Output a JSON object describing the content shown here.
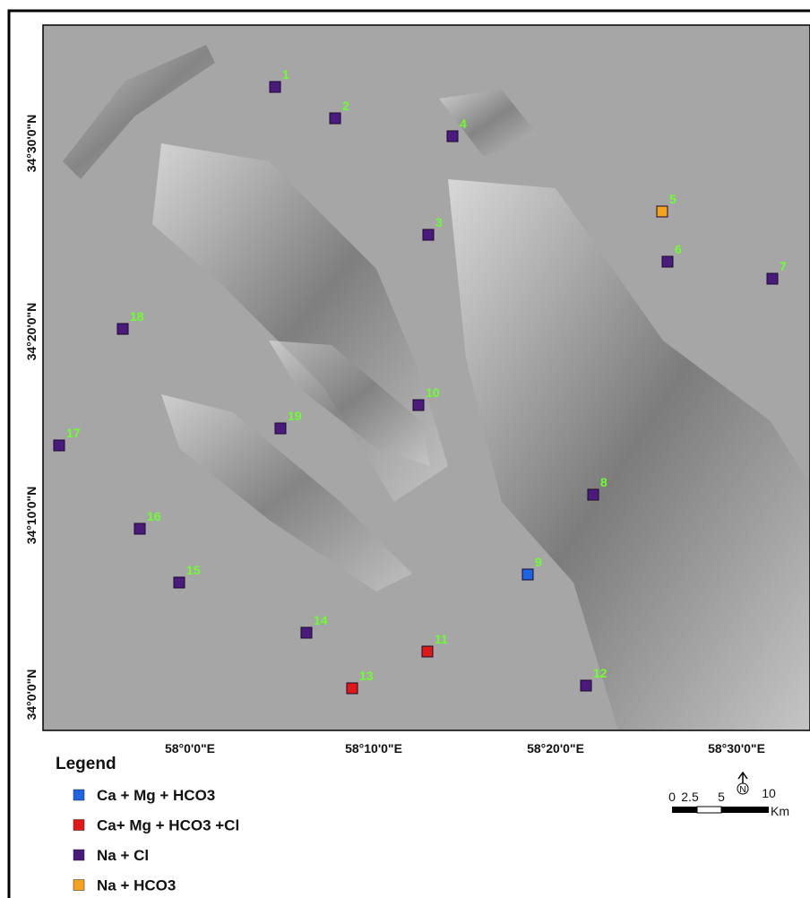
{
  "latitude_labels": [
    "34°30'0\"N",
    "34°20'0\"N",
    "34°10'0\"N",
    "34°0'0\"N"
  ],
  "longitude_labels": [
    "58°0'0\"E",
    "58°10'0\"E",
    "58°20'0\"E",
    "58°30'0\"E"
  ],
  "points": [
    {
      "label": "1",
      "color": "#4b1a7d"
    },
    {
      "label": "2",
      "color": "#4b1a7d"
    },
    {
      "label": "4",
      "color": "#4b1a7d"
    },
    {
      "label": "5",
      "color": "#f5a31f"
    },
    {
      "label": "3",
      "color": "#4b1a7d"
    },
    {
      "label": "6",
      "color": "#4b1a7d"
    },
    {
      "label": "7",
      "color": "#4b1a7d"
    },
    {
      "label": "18",
      "color": "#4b1a7d"
    },
    {
      "label": "10",
      "color": "#4b1a7d"
    },
    {
      "label": "19",
      "color": "#4b1a7d"
    },
    {
      "label": "17",
      "color": "#4b1a7d"
    },
    {
      "label": "8",
      "color": "#4b1a7d"
    },
    {
      "label": "16",
      "color": "#4b1a7d"
    },
    {
      "label": "9",
      "color": "#1f63e0"
    },
    {
      "label": "15",
      "color": "#4b1a7d"
    },
    {
      "label": "14",
      "color": "#4b1a7d"
    },
    {
      "label": "11",
      "color": "#e01818"
    },
    {
      "label": "13",
      "color": "#e01818"
    },
    {
      "label": "12",
      "color": "#4b1a7d"
    }
  ],
  "legend": {
    "title": "Legend",
    "items": [
      {
        "label": "Ca + Mg + HCO3",
        "color": "#1f63e0"
      },
      {
        "label": "Ca+ Mg + HCO3 +Cl",
        "color": "#e01818"
      },
      {
        "label": "Na + Cl",
        "color": "#4b1a7d"
      },
      {
        "label": "Na + HCO3",
        "color": "#f5a31f"
      }
    ]
  },
  "scale_bar": {
    "ticks": [
      "0",
      "2.5",
      "5",
      "10"
    ],
    "unit": "Km"
  },
  "north_arrow": "N"
}
